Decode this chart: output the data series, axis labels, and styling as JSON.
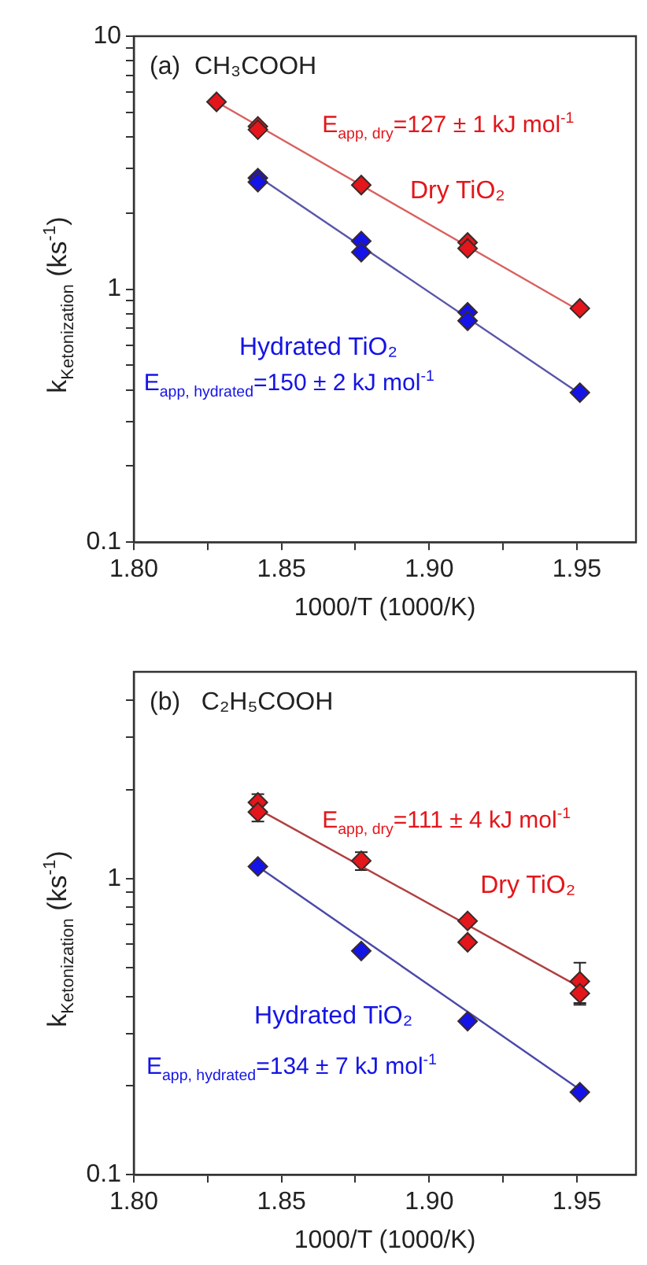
{
  "chart_data": [
    {
      "type": "scatter",
      "title": "(a)  CH₃COOH",
      "xlabel": "1000/T (1000/K)",
      "ylabel": "k$_{Ketonization}$ (ks$^{-1}$)",
      "log": "y",
      "marker": "diamond",
      "xlim": [
        1.8,
        1.97
      ],
      "xticks": [
        {
          "value": 1.8,
          "label": "1.80"
        },
        {
          "value": 1.825,
          "label": null
        },
        {
          "value": 1.85,
          "label": "1.85"
        },
        {
          "value": 1.875,
          "label": null
        },
        {
          "value": 1.9,
          "label": "1.90"
        },
        {
          "value": 1.925,
          "label": null
        },
        {
          "value": 1.95,
          "label": "1.95"
        }
      ],
      "ylim": [
        0.1,
        10
      ],
      "yticks": [
        0.1,
        {
          "value": 0.2,
          "label": null
        },
        {
          "value": 0.3,
          "label": null
        },
        {
          "value": 0.4,
          "label": null
        },
        {
          "value": 0.5,
          "label": null
        },
        {
          "value": 0.6,
          "label": null
        },
        {
          "value": 0.7,
          "label": null
        },
        {
          "value": 0.8,
          "label": null
        },
        {
          "value": 0.9,
          "label": null
        },
        1,
        {
          "value": 2,
          "label": null
        },
        {
          "value": 3,
          "label": null
        },
        {
          "value": 4,
          "label": null
        },
        {
          "value": 5,
          "label": null
        },
        {
          "value": 6,
          "label": null
        },
        {
          "value": 7,
          "label": null
        },
        {
          "value": 8,
          "label": null
        },
        {
          "value": 9,
          "label": null
        },
        10
      ],
      "annotations": [
        "E$_{app, dry}$=127 ± 1 kJ mol$^{-1}$",
        "E$_{app, hydrated}$=150 ± 2 kJ mol$^{-1}$"
      ],
      "series": [
        {
          "name": "Dry TiO₂",
          "color": "#e3161b",
          "x": [
            1.828,
            1.842,
            1.842,
            1.877,
            1.913,
            1.913,
            1.951
          ],
          "values": [
            5.5,
            4.4,
            4.27,
            2.58,
            1.53,
            1.45,
            0.84
          ]
        },
        {
          "name": "Hydrated TiO₂",
          "color": "#1414e6",
          "x": [
            1.842,
            1.842,
            1.877,
            1.877,
            1.913,
            1.913,
            1.951
          ],
          "values": [
            2.75,
            2.65,
            1.55,
            1.4,
            0.81,
            0.75,
            0.39
          ]
        },
        {
          "type": "line",
          "marker": "none",
          "color": "#d9605e",
          "x": [
            1.828,
            1.951
          ],
          "values": [
            5.5,
            0.82
          ]
        },
        {
          "type": "line",
          "marker": "none",
          "color": "#5a55a8",
          "x": [
            1.842,
            1.951
          ],
          "values": [
            2.79,
            0.386
          ]
        }
      ]
    },
    {
      "type": "scatter",
      "title": "(b)   C₂H₅COOH",
      "xlabel": "1000/T (1000/K)",
      "ylabel": "k$_{Ketonization}$ (ks$^{-1}$)",
      "log": "y",
      "marker": "diamond",
      "xlim": [
        1.8,
        1.97
      ],
      "xticks": [
        {
          "value": 1.8,
          "label": "1.80"
        },
        {
          "value": 1.825,
          "label": null
        },
        {
          "value": 1.85,
          "label": "1.85"
        },
        {
          "value": 1.875,
          "label": null
        },
        {
          "value": 1.9,
          "label": "1.90"
        },
        {
          "value": 1.925,
          "label": null
        },
        {
          "value": 1.95,
          "label": "1.95"
        }
      ],
      "ylim": [
        0.1,
        5
      ],
      "yticks": [
        0.1,
        {
          "value": 0.2,
          "label": null
        },
        {
          "value": 0.3,
          "label": null
        },
        {
          "value": 0.4,
          "label": null
        },
        {
          "value": 0.5,
          "label": null
        },
        {
          "value": 0.6,
          "label": null
        },
        {
          "value": 0.7,
          "label": null
        },
        {
          "value": 0.8,
          "label": null
        },
        {
          "value": 0.9,
          "label": null
        },
        1,
        {
          "value": 2,
          "label": null
        },
        {
          "value": 3,
          "label": null
        },
        {
          "value": 4,
          "label": null
        }
      ],
      "annotations": [
        "E$_{app, dry}$=111 ± 4 kJ mol$^{-1}$",
        "E$_{app, hydrated}$=134 ± 7 kJ mol$^{-1}$"
      ],
      "series": [
        {
          "name": "Dry TiO₂",
          "color": "#e3161b",
          "x": [
            1.842,
            1.842,
            1.877,
            1.913,
            1.913,
            1.951,
            1.951
          ],
          "values": [
            1.81,
            1.68,
            1.15,
            0.72,
            0.61,
            0.45,
            0.41
          ],
          "errors": [
            0.12,
            0.12,
            0.08,
            null,
            null,
            0.07,
            0.035
          ]
        },
        {
          "name": "Hydrated TiO₂",
          "color": "#1414e6",
          "x": [
            1.842,
            1.877,
            1.913,
            1.951
          ],
          "values": [
            1.1,
            0.57,
            0.33,
            0.19
          ]
        },
        {
          "type": "line",
          "marker": "none",
          "color": "#b04040",
          "x": [
            1.842,
            1.951
          ],
          "values": [
            1.72,
            0.43
          ]
        },
        {
          "type": "line",
          "marker": "none",
          "color": "#4a48a8",
          "x": [
            1.842,
            1.951
          ],
          "values": [
            1.1,
            0.194
          ]
        }
      ]
    }
  ]
}
